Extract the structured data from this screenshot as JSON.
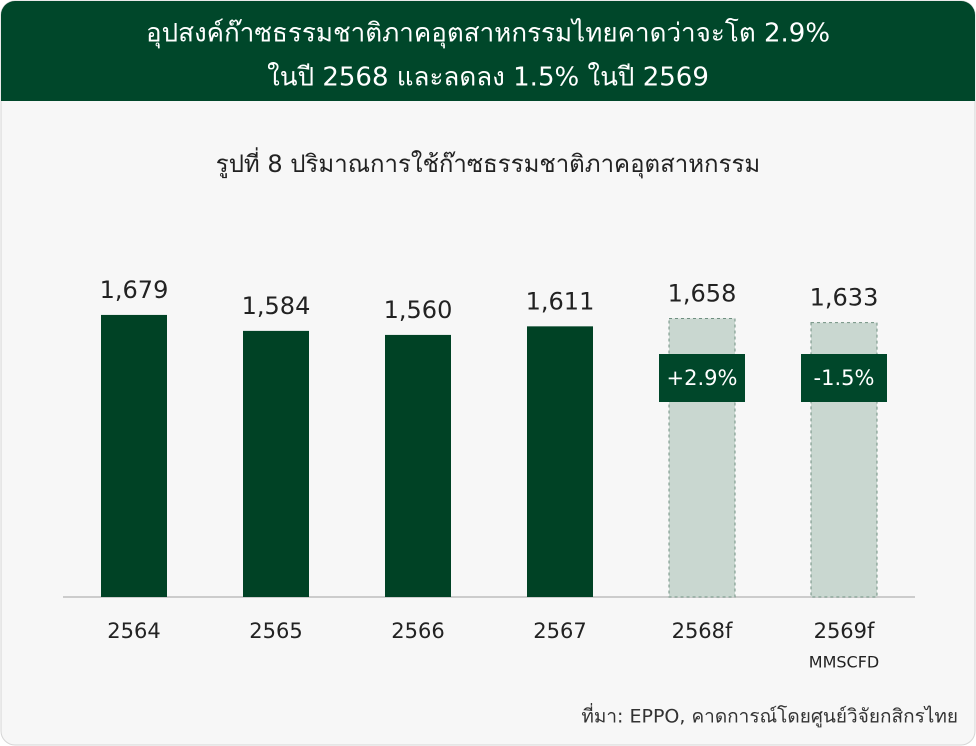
{
  "header": {
    "lines": [
      "อุปสงค์ก๊าซธรรมชาติภาคอุตสาหกรรมไทยคาดว่าจะโต 2.9%",
      "ในปี 2568 และลดลง 1.5% ในปี 2569"
    ]
  },
  "chart_data": {
    "type": "bar",
    "title": "รูปที่ 8 ปริมาณการใช้ก๊าซธรรมชาติภาคอุตสาหกรรม",
    "categories": [
      "2564",
      "2565",
      "2566",
      "2567",
      "2568f",
      "2569f"
    ],
    "values": [
      1679,
      1584,
      1560,
      1611,
      1658,
      1633
    ],
    "value_labels": [
      "1,679",
      "1,584",
      "1,560",
      "1,611",
      "1,658",
      "1,633"
    ],
    "colors": [
      "#004225",
      "#004225",
      "#004225",
      "#004225",
      "#c9d7d0",
      "#c9d7d0"
    ],
    "bar_styles": [
      "solid",
      "solid",
      "solid",
      "solid",
      "dashed",
      "dashed"
    ],
    "annotations": [
      null,
      null,
      null,
      null,
      "+2.9%",
      "-1.5%"
    ],
    "unit": "MMSCFD",
    "source": "ที่มา: EPPO, คาดการณ์โดยศูนย์วิจัยกสิกรไทย"
  }
}
